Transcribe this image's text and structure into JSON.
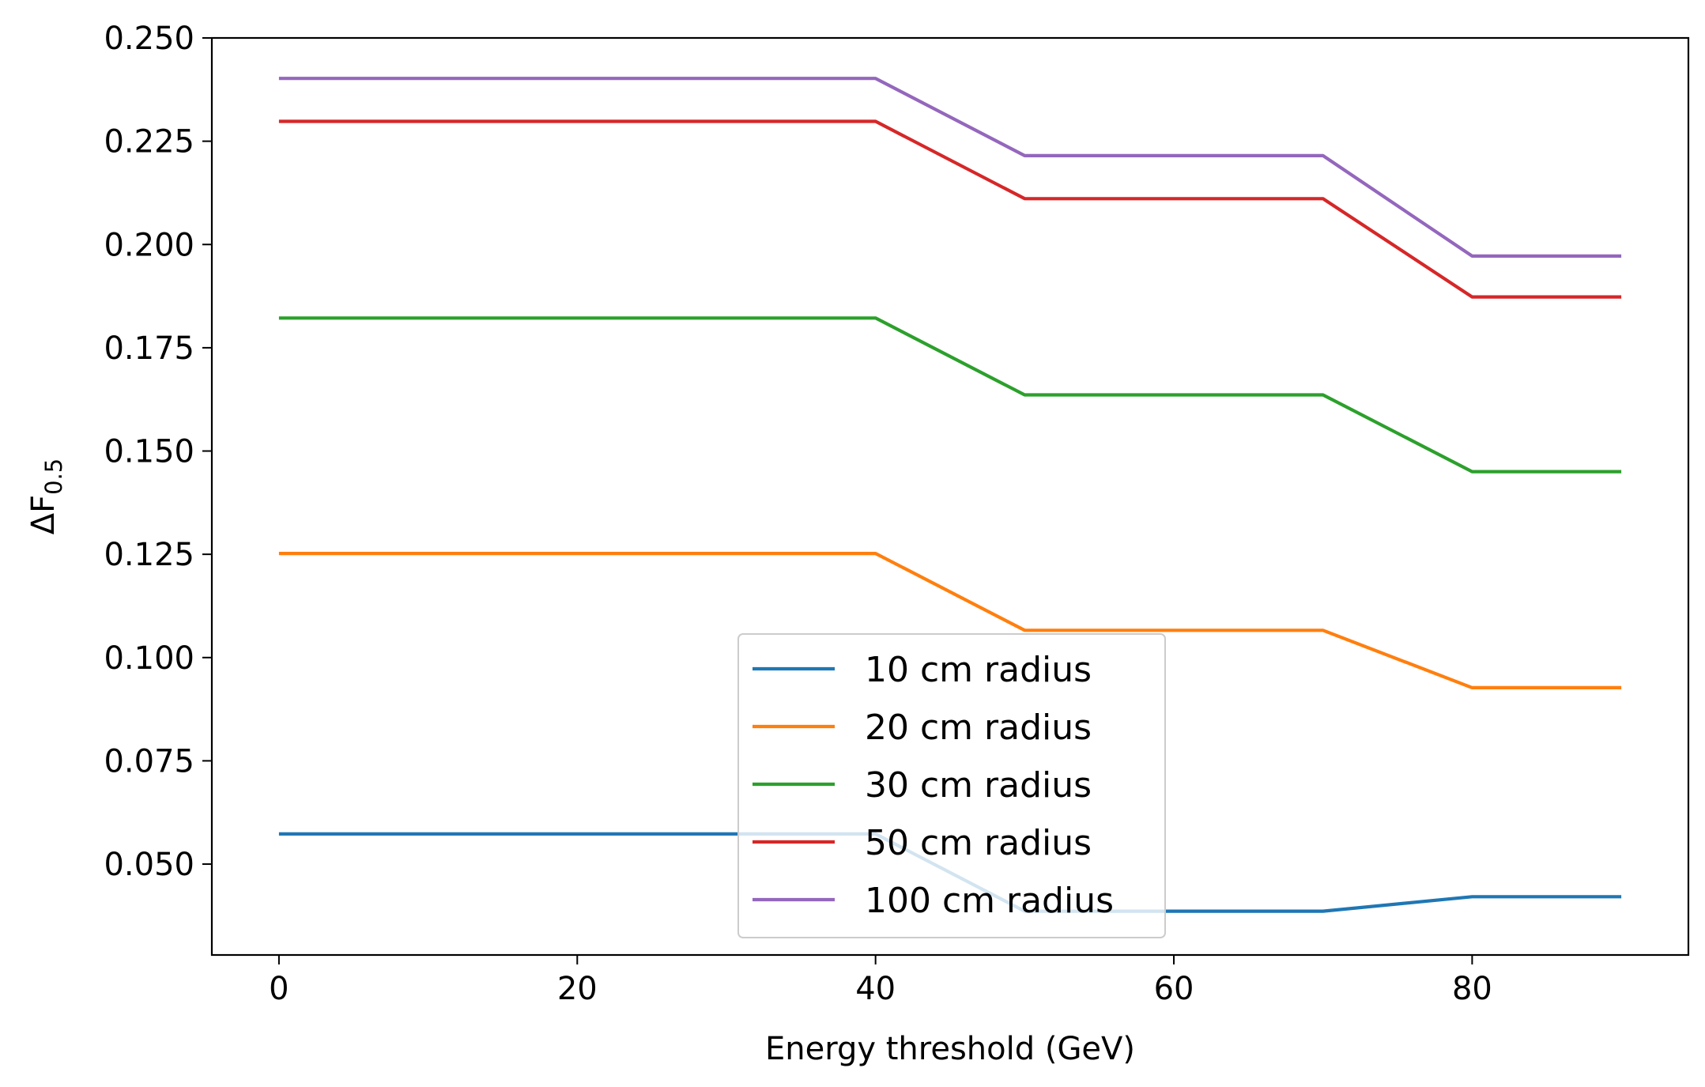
{
  "chart_data": {
    "type": "line",
    "xlabel": "Energy threshold (GeV)",
    "ylabel_main": "ΔF",
    "ylabel_sub": "0.5",
    "xlim": [
      -4.5,
      94.5
    ],
    "ylim": [
      0.028,
      0.25
    ],
    "xticks": [
      0,
      20,
      40,
      60,
      80
    ],
    "yticks": [
      0.05,
      0.075,
      0.1,
      0.125,
      0.15,
      0.175,
      0.2,
      0.225,
      0.25
    ],
    "ytick_labels": [
      "0.050",
      "0.075",
      "0.100",
      "0.125",
      "0.150",
      "0.175",
      "0.200",
      "0.225",
      "0.250"
    ],
    "x": [
      0,
      10,
      20,
      30,
      40,
      50,
      60,
      70,
      80,
      90
    ],
    "legend_position": "lower-center",
    "series": [
      {
        "name": "10 cm radius",
        "color": "#1f77b4",
        "values": [
          0.0573,
          0.0573,
          0.0573,
          0.0573,
          0.0573,
          0.0386,
          0.0386,
          0.0386,
          0.0421,
          0.0421
        ]
      },
      {
        "name": "20 cm radius",
        "color": "#ff7f0e",
        "values": [
          0.1252,
          0.1252,
          0.1252,
          0.1252,
          0.1252,
          0.1066,
          0.1066,
          0.1066,
          0.0927,
          0.0927
        ]
      },
      {
        "name": "30 cm radius",
        "color": "#2ca02c",
        "values": [
          0.1822,
          0.1822,
          0.1822,
          0.1822,
          0.1822,
          0.1636,
          0.1636,
          0.1636,
          0.145,
          0.145
        ]
      },
      {
        "name": "50 cm radius",
        "color": "#d62728",
        "values": [
          0.2298,
          0.2298,
          0.2298,
          0.2298,
          0.2298,
          0.2111,
          0.2111,
          0.2111,
          0.1873,
          0.1873
        ]
      },
      {
        "name": "100 cm radius",
        "color": "#9467bd",
        "values": [
          0.2402,
          0.2402,
          0.2402,
          0.2402,
          0.2402,
          0.2215,
          0.2215,
          0.2215,
          0.1972,
          0.1972
        ]
      }
    ]
  }
}
